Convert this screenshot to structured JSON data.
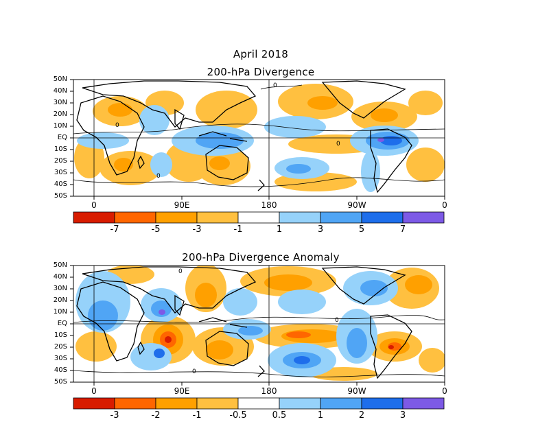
{
  "header": {
    "date": "April 2018",
    "title1": "200-hPa Divergence"
  },
  "panel2": {
    "title": "200-hPa Divergence Anomaly"
  },
  "lat_labels": [
    "50N",
    "40N",
    "30N",
    "20N",
    "10N",
    "EQ",
    "10S",
    "20S",
    "30S",
    "40S",
    "50S"
  ],
  "lon_labels": [
    "0",
    "90E",
    "180",
    "90W",
    "0"
  ],
  "colorbar1": {
    "colors": [
      "#d81c00",
      "#ff6600",
      "#ffa000",
      "#ffc040",
      "#ffffff",
      "#96d2fa",
      "#50a5f5",
      "#1e6eeb",
      "#7d5ae6"
    ],
    "labels": [
      "-7",
      "-5",
      "-3",
      "-1",
      "1",
      "3",
      "5",
      "7"
    ]
  },
  "colorbar2": {
    "colors": [
      "#d81c00",
      "#ff6600",
      "#ffa000",
      "#ffc040",
      "#ffffff",
      "#96d2fa",
      "#50a5f5",
      "#1e6eeb",
      "#7d5ae6"
    ],
    "labels": [
      "-3",
      "-2",
      "-1",
      "-0.5",
      "0.5",
      "1",
      "2",
      "3"
    ]
  },
  "contour_label": "0"
}
